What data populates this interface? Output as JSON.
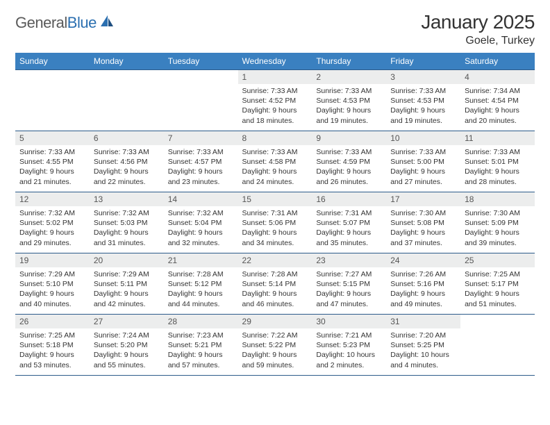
{
  "brand": {
    "name_part1": "General",
    "name_part2": "Blue"
  },
  "title": "January 2025",
  "location": "Goele, Turkey",
  "colors": {
    "header_bg": "#3a80c0",
    "header_text": "#ffffff",
    "daynum_bg": "#eceded",
    "border": "#2b5a8a",
    "text": "#333333",
    "logo_gray": "#5a5a5a",
    "logo_blue": "#2b6fb0"
  },
  "weekdays": [
    "Sunday",
    "Monday",
    "Tuesday",
    "Wednesday",
    "Thursday",
    "Friday",
    "Saturday"
  ],
  "weeks": [
    [
      {
        "n": "",
        "sr": "",
        "ss": "",
        "dl": ""
      },
      {
        "n": "",
        "sr": "",
        "ss": "",
        "dl": ""
      },
      {
        "n": "",
        "sr": "",
        "ss": "",
        "dl": ""
      },
      {
        "n": "1",
        "sr": "Sunrise: 7:33 AM",
        "ss": "Sunset: 4:52 PM",
        "dl": "Daylight: 9 hours and 18 minutes."
      },
      {
        "n": "2",
        "sr": "Sunrise: 7:33 AM",
        "ss": "Sunset: 4:53 PM",
        "dl": "Daylight: 9 hours and 19 minutes."
      },
      {
        "n": "3",
        "sr": "Sunrise: 7:33 AM",
        "ss": "Sunset: 4:53 PM",
        "dl": "Daylight: 9 hours and 19 minutes."
      },
      {
        "n": "4",
        "sr": "Sunrise: 7:34 AM",
        "ss": "Sunset: 4:54 PM",
        "dl": "Daylight: 9 hours and 20 minutes."
      }
    ],
    [
      {
        "n": "5",
        "sr": "Sunrise: 7:33 AM",
        "ss": "Sunset: 4:55 PM",
        "dl": "Daylight: 9 hours and 21 minutes."
      },
      {
        "n": "6",
        "sr": "Sunrise: 7:33 AM",
        "ss": "Sunset: 4:56 PM",
        "dl": "Daylight: 9 hours and 22 minutes."
      },
      {
        "n": "7",
        "sr": "Sunrise: 7:33 AM",
        "ss": "Sunset: 4:57 PM",
        "dl": "Daylight: 9 hours and 23 minutes."
      },
      {
        "n": "8",
        "sr": "Sunrise: 7:33 AM",
        "ss": "Sunset: 4:58 PM",
        "dl": "Daylight: 9 hours and 24 minutes."
      },
      {
        "n": "9",
        "sr": "Sunrise: 7:33 AM",
        "ss": "Sunset: 4:59 PM",
        "dl": "Daylight: 9 hours and 26 minutes."
      },
      {
        "n": "10",
        "sr": "Sunrise: 7:33 AM",
        "ss": "Sunset: 5:00 PM",
        "dl": "Daylight: 9 hours and 27 minutes."
      },
      {
        "n": "11",
        "sr": "Sunrise: 7:33 AM",
        "ss": "Sunset: 5:01 PM",
        "dl": "Daylight: 9 hours and 28 minutes."
      }
    ],
    [
      {
        "n": "12",
        "sr": "Sunrise: 7:32 AM",
        "ss": "Sunset: 5:02 PM",
        "dl": "Daylight: 9 hours and 29 minutes."
      },
      {
        "n": "13",
        "sr": "Sunrise: 7:32 AM",
        "ss": "Sunset: 5:03 PM",
        "dl": "Daylight: 9 hours and 31 minutes."
      },
      {
        "n": "14",
        "sr": "Sunrise: 7:32 AM",
        "ss": "Sunset: 5:04 PM",
        "dl": "Daylight: 9 hours and 32 minutes."
      },
      {
        "n": "15",
        "sr": "Sunrise: 7:31 AM",
        "ss": "Sunset: 5:06 PM",
        "dl": "Daylight: 9 hours and 34 minutes."
      },
      {
        "n": "16",
        "sr": "Sunrise: 7:31 AM",
        "ss": "Sunset: 5:07 PM",
        "dl": "Daylight: 9 hours and 35 minutes."
      },
      {
        "n": "17",
        "sr": "Sunrise: 7:30 AM",
        "ss": "Sunset: 5:08 PM",
        "dl": "Daylight: 9 hours and 37 minutes."
      },
      {
        "n": "18",
        "sr": "Sunrise: 7:30 AM",
        "ss": "Sunset: 5:09 PM",
        "dl": "Daylight: 9 hours and 39 minutes."
      }
    ],
    [
      {
        "n": "19",
        "sr": "Sunrise: 7:29 AM",
        "ss": "Sunset: 5:10 PM",
        "dl": "Daylight: 9 hours and 40 minutes."
      },
      {
        "n": "20",
        "sr": "Sunrise: 7:29 AM",
        "ss": "Sunset: 5:11 PM",
        "dl": "Daylight: 9 hours and 42 minutes."
      },
      {
        "n": "21",
        "sr": "Sunrise: 7:28 AM",
        "ss": "Sunset: 5:12 PM",
        "dl": "Daylight: 9 hours and 44 minutes."
      },
      {
        "n": "22",
        "sr": "Sunrise: 7:28 AM",
        "ss": "Sunset: 5:14 PM",
        "dl": "Daylight: 9 hours and 46 minutes."
      },
      {
        "n": "23",
        "sr": "Sunrise: 7:27 AM",
        "ss": "Sunset: 5:15 PM",
        "dl": "Daylight: 9 hours and 47 minutes."
      },
      {
        "n": "24",
        "sr": "Sunrise: 7:26 AM",
        "ss": "Sunset: 5:16 PM",
        "dl": "Daylight: 9 hours and 49 minutes."
      },
      {
        "n": "25",
        "sr": "Sunrise: 7:25 AM",
        "ss": "Sunset: 5:17 PM",
        "dl": "Daylight: 9 hours and 51 minutes."
      }
    ],
    [
      {
        "n": "26",
        "sr": "Sunrise: 7:25 AM",
        "ss": "Sunset: 5:18 PM",
        "dl": "Daylight: 9 hours and 53 minutes."
      },
      {
        "n": "27",
        "sr": "Sunrise: 7:24 AM",
        "ss": "Sunset: 5:20 PM",
        "dl": "Daylight: 9 hours and 55 minutes."
      },
      {
        "n": "28",
        "sr": "Sunrise: 7:23 AM",
        "ss": "Sunset: 5:21 PM",
        "dl": "Daylight: 9 hours and 57 minutes."
      },
      {
        "n": "29",
        "sr": "Sunrise: 7:22 AM",
        "ss": "Sunset: 5:22 PM",
        "dl": "Daylight: 9 hours and 59 minutes."
      },
      {
        "n": "30",
        "sr": "Sunrise: 7:21 AM",
        "ss": "Sunset: 5:23 PM",
        "dl": "Daylight: 10 hours and 2 minutes."
      },
      {
        "n": "31",
        "sr": "Sunrise: 7:20 AM",
        "ss": "Sunset: 5:25 PM",
        "dl": "Daylight: 10 hours and 4 minutes."
      },
      {
        "n": "",
        "sr": "",
        "ss": "",
        "dl": ""
      }
    ]
  ]
}
